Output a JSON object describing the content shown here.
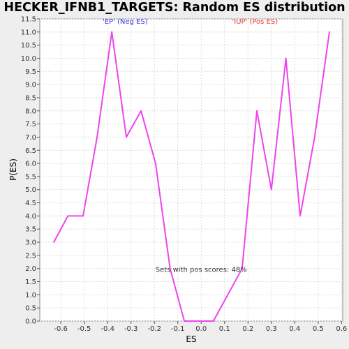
{
  "chart_data": {
    "type": "line",
    "title": "HECKER_IFNB1_TARGETS: Random ES distribution",
    "xlabel": "ES",
    "ylabel": "P(ES)",
    "xlim": [
      -0.69,
      0.605
    ],
    "ylim": [
      0,
      11.5
    ],
    "x_ticks": [
      -0.6,
      -0.5,
      -0.4,
      -0.3,
      -0.2,
      -0.1,
      0.0,
      0.1,
      0.2,
      0.3,
      0.4,
      0.5,
      0.6
    ],
    "x_tick_labels": [
      "-0.6",
      "-0.5",
      "-0.4",
      "-0.3",
      "-0.2",
      "-0.1",
      "0.0",
      "0.1",
      "0.2",
      "0.3",
      "0.4",
      "0.5",
      "0.6"
    ],
    "y_ticks": [
      0,
      0.5,
      1,
      1.5,
      2,
      2.5,
      3,
      3.5,
      4,
      4.5,
      5,
      5.5,
      6,
      6.5,
      7,
      7.5,
      8,
      8.5,
      9,
      9.5,
      10,
      10.5,
      11,
      11.5
    ],
    "y_tick_labels": [
      "0.0",
      "0.5",
      "1.0",
      "1.5",
      "2.0",
      "2.5",
      "3.0",
      "3.5",
      "4.0",
      "4.5",
      "5.0",
      "5.5",
      "6.0",
      "6.5",
      "7.0",
      "7.5",
      "8.0",
      "8.5",
      "9.0",
      "9.5",
      "10.0",
      "10.5",
      "11.0",
      "11.5"
    ],
    "grid": true,
    "series": [
      {
        "color": "#ee44ee",
        "x": [
          -0.63,
          -0.57,
          -0.505,
          -0.445,
          -0.382,
          -0.32,
          -0.257,
          -0.195,
          -0.133,
          -0.072,
          -0.01,
          0.052,
          0.175,
          0.238,
          0.3,
          0.362,
          0.423,
          0.485,
          0.548
        ],
        "y": [
          3,
          4,
          4,
          7,
          11,
          7,
          8,
          6,
          2,
          0,
          0,
          0,
          2,
          8,
          5,
          10,
          4,
          7,
          11
        ]
      }
    ],
    "annotations": [
      {
        "text": "'EP' (Neg ES)",
        "color": "#3333dd",
        "x": -0.325,
        "y": 11.42
      },
      {
        "text": "'IUP' (Pos ES)",
        "color": "#ee3333",
        "x": 0.23,
        "y": 11.42
      },
      {
        "text": "Sets with pos scores: 48%",
        "color": "#333333",
        "x": 0.0,
        "y": 1.98
      }
    ]
  }
}
